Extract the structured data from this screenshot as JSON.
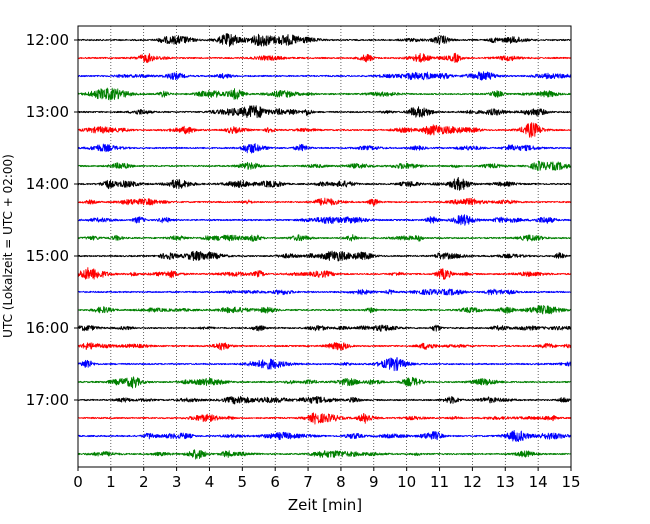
{
  "chart_data": {
    "type": "line",
    "title": "",
    "xlabel": "Zeit  [min]",
    "ylabel": "UTC (Lokalzeit = UTC + 02:00)",
    "xlim": [
      0,
      15
    ],
    "x_ticks": [
      "0",
      "1",
      "2",
      "3",
      "4",
      "5",
      "6",
      "7",
      "8",
      "9",
      "10",
      "11",
      "12",
      "13",
      "14",
      "15"
    ],
    "y_ticks": [
      "12:00",
      "13:00",
      "14:00",
      "15:00",
      "16:00",
      "17:00"
    ],
    "grid": "vertical dotted lines at each minute",
    "trace_colors": [
      "#000000",
      "#ff0000",
      "#0000ff",
      "#008000"
    ],
    "traces": [
      {
        "start": "12:00"
      },
      {
        "start": "12:15"
      },
      {
        "start": "12:30"
      },
      {
        "start": "12:45"
      },
      {
        "start": "13:00"
      },
      {
        "start": "13:15"
      },
      {
        "start": "13:30"
      },
      {
        "start": "13:45"
      },
      {
        "start": "14:00"
      },
      {
        "start": "14:15"
      },
      {
        "start": "14:30"
      },
      {
        "start": "14:45"
      },
      {
        "start": "15:00"
      },
      {
        "start": "15:15"
      },
      {
        "start": "15:30"
      },
      {
        "start": "15:45"
      },
      {
        "start": "16:00"
      },
      {
        "start": "16:15"
      },
      {
        "start": "16:30"
      },
      {
        "start": "16:45"
      },
      {
        "start": "17:00"
      },
      {
        "start": "17:15"
      },
      {
        "start": "17:30"
      },
      {
        "start": "17:45"
      }
    ]
  }
}
